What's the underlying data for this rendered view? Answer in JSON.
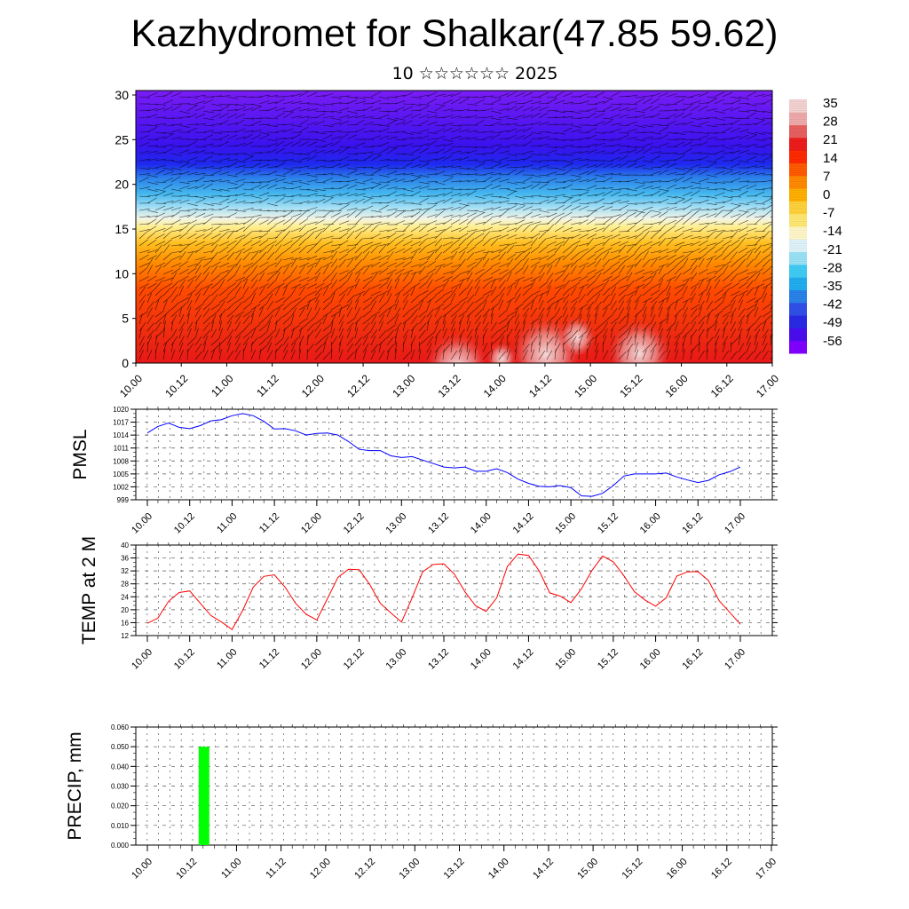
{
  "title": "Kazhydromet for Shalkar(47.85 59.62)",
  "subtitle": "10 ☆☆☆☆☆☆ 2025",
  "x_ticks": [
    "10.00",
    "10.12",
    "11.00",
    "11.12",
    "12.00",
    "12.12",
    "13.00",
    "13.12",
    "14.00",
    "14.12",
    "15.00",
    "15.12",
    "16.00",
    "16.12",
    "17.00"
  ],
  "colors": {
    "pmsl": "#0000ff",
    "temp": "#ff0000",
    "precip": "#00ff00"
  },
  "chart_data": [
    {
      "type": "heatmap",
      "title": "",
      "xlabel": "",
      "ylabel": "",
      "ylim": [
        0,
        30
      ],
      "y_ticks": [
        "0",
        "5",
        "10",
        "15",
        "20",
        "25",
        "30"
      ],
      "colorbar_labels": [
        "35",
        "28",
        "21",
        "14",
        "7",
        "0",
        "-7",
        "-14",
        "-21",
        "-28",
        "-35",
        "-42",
        "-49",
        "-56"
      ],
      "colormap": [
        "#8000ff",
        "#4b0df0",
        "#2a2ae6",
        "#3050e8",
        "#2a82ea",
        "#22aef0",
        "#40ccf5",
        "#9ae2f8",
        "#dff3fb",
        "#fff7c8",
        "#ffe873",
        "#ffd23c",
        "#ffb000",
        "#ff8a00",
        "#ff5a00",
        "#ff2a00",
        "#ee1c1c",
        "#e86060",
        "#efaaaa",
        "#f4d2d2"
      ],
      "description_levels": "Temperature (°C) by height level; wind barbs overlaid"
    },
    {
      "type": "line",
      "ylabel": "PMSL",
      "ylim": [
        999,
        1020
      ],
      "y_ticks": [
        "999",
        "1002",
        "1005",
        "1008",
        "1011",
        "1014",
        "1017",
        "1020"
      ],
      "series": [
        {
          "values": [
            1014.5,
            1016,
            1016.8,
            1015.8,
            1015.5,
            1016.2,
            1017.3,
            1017.6,
            1018.5,
            1019,
            1018.5,
            1017.2,
            1015.4,
            1015.5,
            1015,
            1014,
            1014.4,
            1014.5,
            1014,
            1012.5,
            1010.7,
            1010.4,
            1010.4,
            1009.2,
            1008.8,
            1009,
            1008.2,
            1007.4,
            1006.6,
            1006.4,
            1006.6,
            1005.6,
            1005.6,
            1006.2,
            1005.3,
            1003.8,
            1002.8,
            1002.1,
            1002,
            1002.3,
            1001.8,
            999.9,
            999.8,
            1000.5,
            1002.3,
            1004.5,
            1005,
            1005,
            1005,
            1005.2,
            1004.3,
            1003.6,
            1003,
            1003.5,
            1004.8,
            1005.5,
            1006.6
          ]
        }
      ]
    },
    {
      "type": "line",
      "ylabel": "TEMP at 2 M",
      "ylim": [
        12,
        40
      ],
      "y_ticks": [
        "12",
        "16",
        "20",
        "24",
        "28",
        "32",
        "36",
        "40"
      ],
      "series": [
        {
          "values": [
            15.8,
            17.4,
            22.6,
            25.3,
            25.8,
            22,
            18.2,
            16.2,
            13.9,
            19.8,
            27,
            30.3,
            30.8,
            27,
            22,
            18.6,
            16.8,
            23.4,
            30,
            32.5,
            32.4,
            27.8,
            22,
            19,
            16.2,
            23.6,
            31.7,
            34,
            34.2,
            31,
            25.5,
            21.2,
            19.5,
            23.7,
            33.4,
            37.2,
            36.8,
            32,
            25.2,
            24.2,
            22.2,
            26.5,
            32.2,
            36.6,
            34.8,
            30.5,
            25.6,
            23,
            21.1,
            23.7,
            30.4,
            31.7,
            31.8,
            29,
            22.8,
            19.2,
            15.5
          ]
        }
      ]
    },
    {
      "type": "bar",
      "ylabel": "PRECIP, mm",
      "ylim": [
        0,
        0.06
      ],
      "y_ticks": [
        "0.000",
        "0.010",
        "0.020",
        "0.030",
        "0.040",
        "0.050",
        "0.060"
      ],
      "bars": [
        {
          "x": 5,
          "value": 0.05
        }
      ]
    }
  ]
}
